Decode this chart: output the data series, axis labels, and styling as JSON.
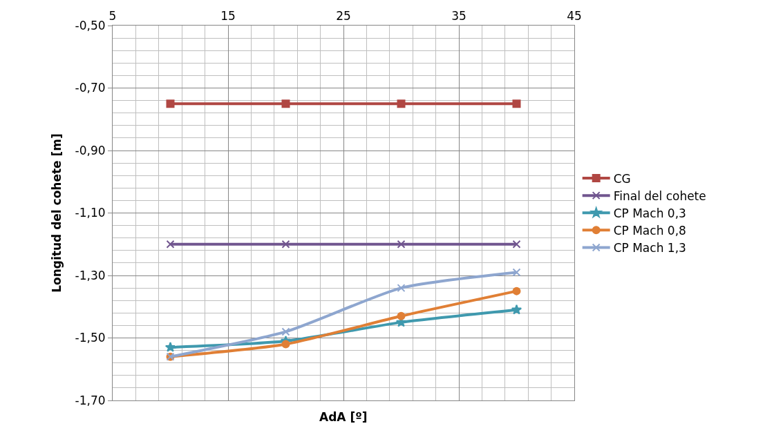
{
  "chart_data": {
    "type": "line",
    "xlabel": "AdA [º]",
    "ylabel": "Longitud del cohete [m]",
    "x": [
      10,
      20,
      30,
      40
    ],
    "series": [
      {
        "name": "CG",
        "color": "#b04743",
        "marker": "square",
        "values": [
          -0.75,
          -0.75,
          -0.75,
          -0.75
        ]
      },
      {
        "name": "Final del cohete",
        "color": "#71568f",
        "marker": "cross",
        "values": [
          -1.2,
          -1.2,
          -1.2,
          -1.2
        ]
      },
      {
        "name": "CP Mach 0,3",
        "color": "#3f99ae",
        "marker": "star",
        "values": [
          -1.53,
          -1.51,
          -1.45,
          -1.41
        ]
      },
      {
        "name": "CP Mach 0,8",
        "color": "#e07f35",
        "marker": "circle",
        "values": [
          -1.56,
          -1.52,
          -1.43,
          -1.35
        ]
      },
      {
        "name": "CP Mach 1,3",
        "color": "#8ea6cf",
        "marker": "cross",
        "values": [
          -1.56,
          -1.48,
          -1.34,
          -1.29
        ]
      }
    ],
    "xlim": [
      5,
      45
    ],
    "xticks": [
      5,
      15,
      25,
      35,
      45
    ],
    "ylim": [
      -1.7,
      -0.5
    ],
    "yticks": [
      {
        "value": -1.7,
        "label": "-1,70"
      },
      {
        "value": -1.5,
        "label": "-1,50"
      },
      {
        "value": -1.3,
        "label": "-1,30"
      },
      {
        "value": -1.1,
        "label": "-1,10"
      },
      {
        "value": -0.9,
        "label": "-0,90"
      },
      {
        "value": -0.7,
        "label": "-0,70"
      },
      {
        "value": -0.5,
        "label": "-0,50"
      }
    ],
    "grid": true,
    "legend": "right",
    "line_style": "solid"
  }
}
